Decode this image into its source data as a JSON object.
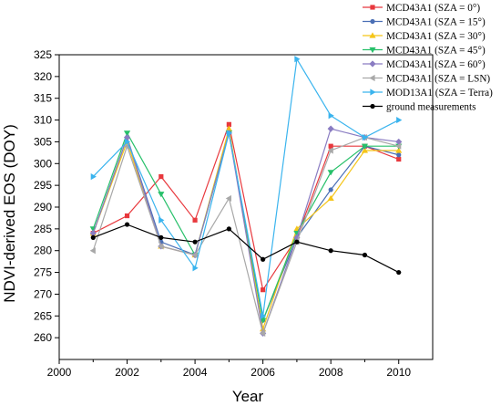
{
  "chart_data": {
    "type": "line",
    "title": "",
    "xlabel": "Year",
    "ylabel": "NDVI-derived EOS (DOY)",
    "xlim": [
      2000,
      2011
    ],
    "ylim": [
      255,
      325
    ],
    "x_ticks": [
      "2000",
      "2002",
      "2004",
      "2006",
      "2008",
      "2010"
    ],
    "y_ticks": [
      "260",
      "265",
      "270",
      "275",
      "280",
      "285",
      "290",
      "295",
      "300",
      "305",
      "310",
      "315",
      "320",
      "325"
    ],
    "x_tick_values": [
      2000,
      2002,
      2004,
      2006,
      2008,
      2010
    ],
    "y_tick_values": [
      260,
      265,
      270,
      275,
      280,
      285,
      290,
      295,
      300,
      305,
      310,
      315,
      320,
      325
    ],
    "x": [
      2001,
      2002,
      2003,
      2004,
      2005,
      2006,
      2007,
      2008,
      2009,
      2010
    ],
    "grid": false,
    "legend_position": "top-right",
    "series": [
      {
        "name": "MCD43A1 (SZA = 0°)",
        "color": "#e8383d",
        "marker": "square",
        "values": [
          284,
          288,
          297,
          287,
          309,
          271,
          283,
          304,
          304,
          301
        ]
      },
      {
        "name": "MCD43A1 (SZA = 15°)",
        "color": "#4a6fb5",
        "marker": "circle",
        "values": [
          284,
          306,
          282,
          279,
          307,
          264,
          283,
          294,
          304,
          302
        ]
      },
      {
        "name": "MCD43A1 (SZA = 30°)",
        "color": "#f5c518",
        "marker": "triangle-up",
        "values": [
          284,
          305,
          281,
          279,
          308,
          262,
          285,
          292,
          303,
          303
        ]
      },
      {
        "name": "MCD43A1 (SZA = 45°)",
        "color": "#27c06a",
        "marker": "triangle-down",
        "values": [
          285,
          307,
          293,
          279,
          307,
          264,
          284,
          298,
          304,
          304
        ]
      },
      {
        "name": "MCD43A1 (SZA = 60°)",
        "color": "#8a7cc2",
        "marker": "diamond",
        "values": [
          284,
          306,
          281,
          279,
          307,
          261,
          283,
          308,
          306,
          305
        ]
      },
      {
        "name": "MCD43A1 (SZA = LSN)",
        "color": "#a8a8a8",
        "marker": "triangle-left",
        "values": [
          280,
          304,
          281,
          279,
          292,
          261,
          282,
          303,
          306,
          304
        ]
      },
      {
        "name": "MOD13A1 (SZA = Terra)",
        "color": "#3ab4ee",
        "marker": "triangle-right",
        "values": [
          297,
          305,
          287,
          276,
          307,
          265,
          324,
          311,
          306,
          310
        ]
      },
      {
        "name": "ground measurements",
        "color": "#000000",
        "marker": "circle",
        "values": [
          283,
          286,
          283,
          282,
          285,
          278,
          282,
          280,
          279,
          275
        ]
      }
    ]
  }
}
